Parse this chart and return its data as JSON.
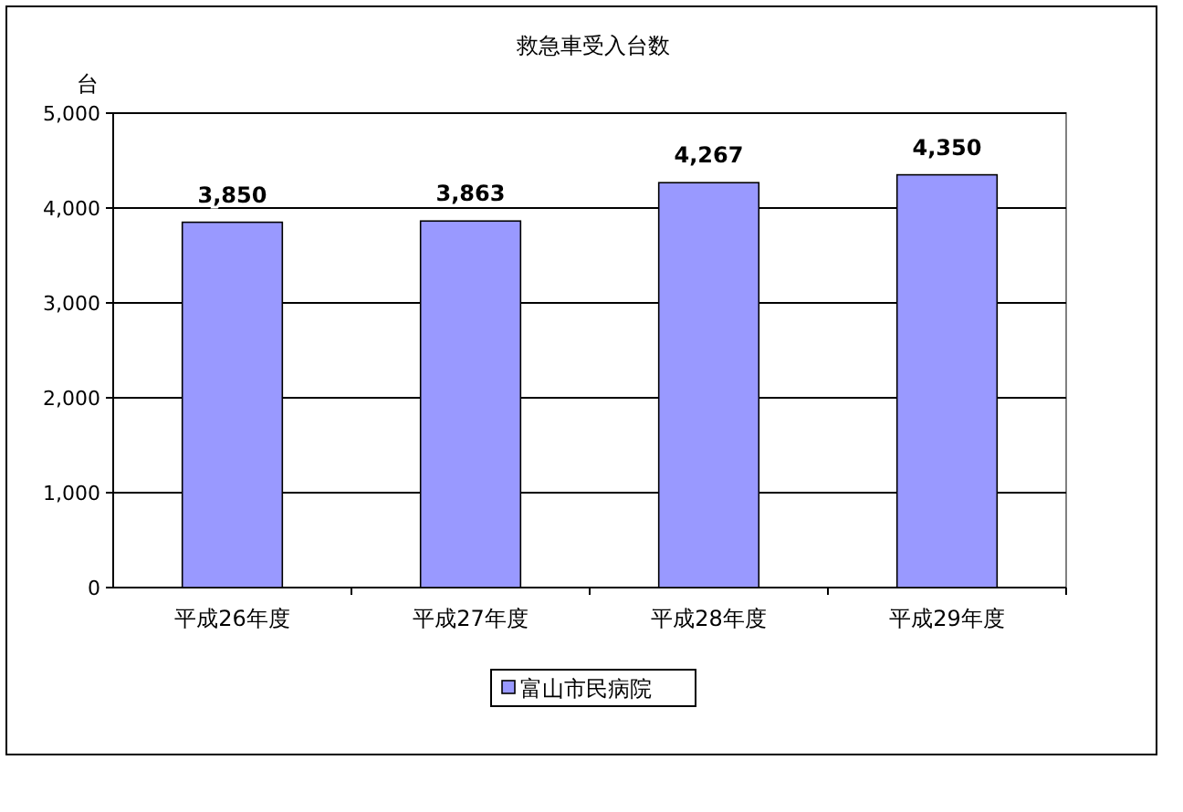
{
  "chart_data": {
    "type": "bar",
    "title": "救急車受入台数",
    "ylabel": "台",
    "categories": [
      "平成26年度",
      "平成27年度",
      "平成28年度",
      "平成29年度"
    ],
    "series": [
      {
        "name": "富山市民病院",
        "color": "#9999ff",
        "values": [
          3850,
          3863,
          4267,
          4350
        ]
      }
    ],
    "ylim": [
      0,
      5000
    ],
    "yticks": [
      {
        "value": 0,
        "label": "0"
      },
      {
        "value": 1000,
        "label": "1,000"
      },
      {
        "value": 2000,
        "label": "2,000"
      },
      {
        "value": 3000,
        "label": "3,000"
      },
      {
        "value": 4000,
        "label": "4,000"
      },
      {
        "value": 5000,
        "label": "5,000"
      }
    ],
    "value_labels": [
      "3,850",
      "3,863",
      "4,267",
      "4,350"
    ],
    "grid": "y",
    "legend": "bottom"
  }
}
